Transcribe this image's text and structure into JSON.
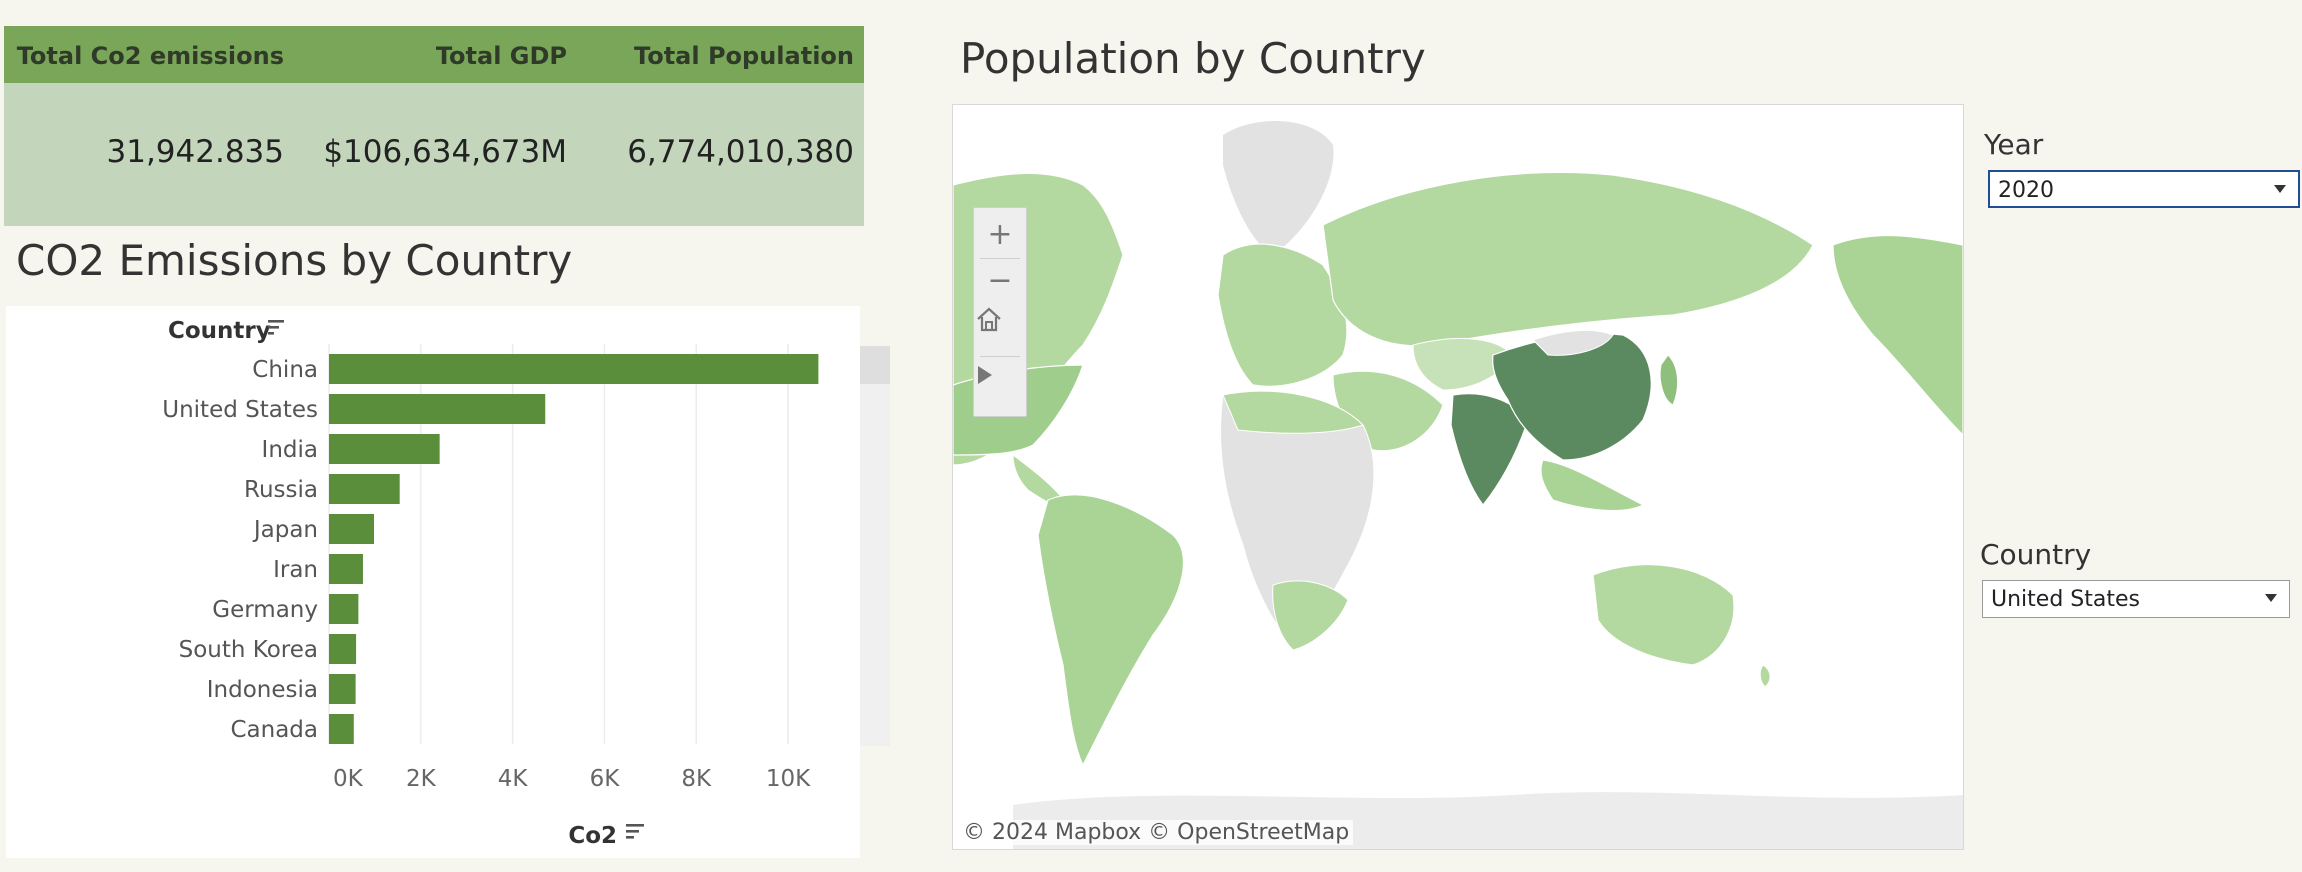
{
  "kpi": {
    "headers": [
      "Total Co2 emissions",
      "Total GDP",
      "Total Population"
    ],
    "values": [
      "31,942.835",
      "$106,634,673M",
      "6,774,010,380"
    ]
  },
  "colors": {
    "kpi_header": "#7aa65a",
    "kpi_body": "#c3d6bc",
    "bar": "#5a8e3a",
    "map_dark": "#5c8a60",
    "map_light": "#b3d9a0",
    "map_null": "#e2e2e2",
    "accent_border": "#1f4e96"
  },
  "bar_section": {
    "title": "CO2 Emissions by Country",
    "country_header": "Country",
    "x_axis_label": "Co2",
    "sort_icon": "sort-icon"
  },
  "chart_data": {
    "type": "bar",
    "orientation": "horizontal",
    "categories": [
      "China",
      "United States",
      "India",
      "Russia",
      "Japan",
      "Iran",
      "Germany",
      "South Korea",
      "Indonesia",
      "Canada"
    ],
    "values": [
      10660,
      4710,
      2410,
      1540,
      980,
      740,
      640,
      590,
      580,
      540
    ],
    "xlabel": "Co2",
    "ylabel": "Country",
    "xlim": [
      0,
      11000
    ],
    "x_ticks": [
      0,
      2000,
      4000,
      6000,
      8000,
      10000
    ],
    "x_tick_labels": [
      "0K",
      "2K",
      "4K",
      "6K",
      "8K",
      "10K"
    ],
    "grid": "vertical"
  },
  "map_section": {
    "title": "Population by Country",
    "attribution": "© 2024 Mapbox  © OpenStreetMap",
    "tools": [
      "zoom-in-icon",
      "zoom-out-icon",
      "home-icon",
      "play-icon"
    ]
  },
  "filters": {
    "year_label": "Year",
    "year_value": "2020",
    "country_label": "Country",
    "country_value": "United States"
  }
}
